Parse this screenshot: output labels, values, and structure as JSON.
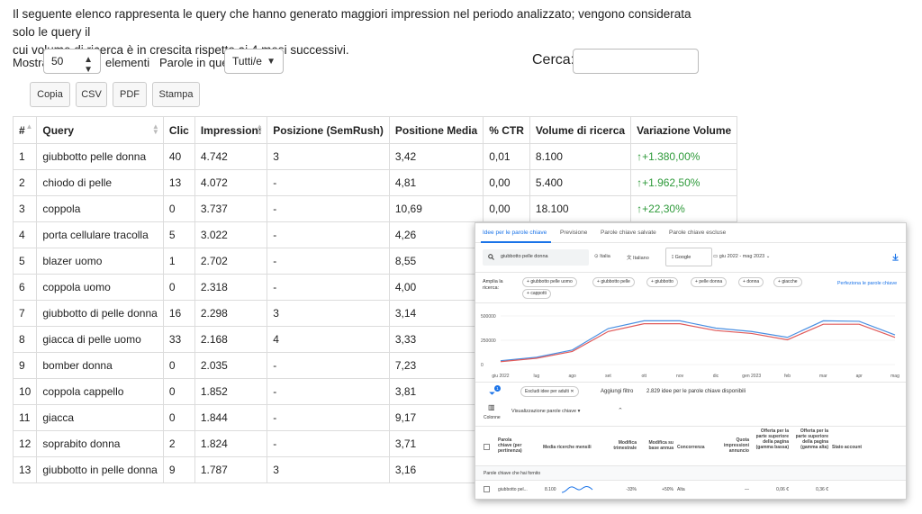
{
  "intro": {
    "line1": "Il seguente elenco rappresenta le query che hanno generato maggiori impression nel periodo analizzato; vengono considerata solo le query il",
    "line2": "cui volume di ricerca è in crescita rispetto ai 4 mesi successivi."
  },
  "controls": {
    "show_label": "Mostra",
    "show_value": "50",
    "elements_label": "elementi",
    "words_label": "Parole in query",
    "words_value": "Tutti/e",
    "search_label": "Cerca:"
  },
  "buttons": [
    "Copia",
    "CSV",
    "PDF",
    "Stampa"
  ],
  "table": {
    "headers": [
      "#",
      "Query",
      "Clic",
      "Impressioni",
      "Posizione (SemRush)",
      "Positione Media",
      "% CTR",
      "Volume di ricerca",
      "Variazione Volume"
    ],
    "rows": [
      {
        "n": "1",
        "query": "giubbotto pelle donna",
        "clic": "40",
        "impr": "4.742",
        "pos_sem": "3",
        "pos_media": "3,42",
        "ctr": "0,01",
        "volume": "8.100",
        "variazione": "+1.380,00%"
      },
      {
        "n": "2",
        "query": "chiodo di pelle",
        "clic": "13",
        "impr": "4.072",
        "pos_sem": "-",
        "pos_media": "4,81",
        "ctr": "0,00",
        "volume": "5.400",
        "variazione": "+1.962,50%"
      },
      {
        "n": "3",
        "query": "coppola",
        "clic": "0",
        "impr": "3.737",
        "pos_sem": "-",
        "pos_media": "10,69",
        "ctr": "0,00",
        "volume": "18.100",
        "variazione": "+22,30%"
      },
      {
        "n": "4",
        "query": "porta cellulare tracolla",
        "clic": "5",
        "impr": "3.022",
        "pos_sem": "-",
        "pos_media": "4,26",
        "ctr": "",
        "volume": "",
        "variazione": ""
      },
      {
        "n": "5",
        "query": "blazer uomo",
        "clic": "1",
        "impr": "2.702",
        "pos_sem": "-",
        "pos_media": "8,55",
        "ctr": "",
        "volume": "",
        "variazione": ""
      },
      {
        "n": "6",
        "query": "coppola uomo",
        "clic": "0",
        "impr": "2.318",
        "pos_sem": "-",
        "pos_media": "4,00",
        "ctr": "",
        "volume": "",
        "variazione": ""
      },
      {
        "n": "7",
        "query": "giubbotto di pelle donna",
        "clic": "16",
        "impr": "2.298",
        "pos_sem": "3",
        "pos_media": "3,14",
        "ctr": "",
        "volume": "",
        "variazione": ""
      },
      {
        "n": "8",
        "query": "giacca di pelle uomo",
        "clic": "33",
        "impr": "2.168",
        "pos_sem": "4",
        "pos_media": "3,33",
        "ctr": "",
        "volume": "",
        "variazione": ""
      },
      {
        "n": "9",
        "query": "bomber donna",
        "clic": "0",
        "impr": "2.035",
        "pos_sem": "-",
        "pos_media": "7,23",
        "ctr": "",
        "volume": "",
        "variazione": ""
      },
      {
        "n": "10",
        "query": "coppola cappello",
        "clic": "0",
        "impr": "1.852",
        "pos_sem": "-",
        "pos_media": "3,81",
        "ctr": "",
        "volume": "",
        "variazione": ""
      },
      {
        "n": "11",
        "query": "giacca",
        "clic": "0",
        "impr": "1.844",
        "pos_sem": "-",
        "pos_media": "9,17",
        "ctr": "",
        "volume": "",
        "variazione": ""
      },
      {
        "n": "12",
        "query": "soprabito donna",
        "clic": "2",
        "impr": "1.824",
        "pos_sem": "-",
        "pos_media": "3,71",
        "ctr": "",
        "volume": "",
        "variazione": ""
      },
      {
        "n": "13",
        "query": "giubbotto in pelle donna",
        "clic": "9",
        "impr": "1.787",
        "pos_sem": "3",
        "pos_media": "3,16",
        "ctr": "",
        "volume": "",
        "variazione": ""
      }
    ]
  },
  "overlay": {
    "tabs": [
      "Idee per le parole chiave",
      "Previsione",
      "Parole chiave salvate",
      "Parole chiave escluse"
    ],
    "search_value": "giubbotto pelle donna",
    "location": "Italia",
    "language": "Italiano",
    "network": "Google",
    "date_range": "giu 2022 - mag 2023",
    "broaden_label": "Amplia la ricerca:",
    "chips": [
      "giubbotto pelle uomo",
      "giubbotto pelle",
      "giubbotto",
      "pelle donna",
      "donna",
      "giacche",
      "cappotti"
    ],
    "refine_link": "Perfeziona le parole chiave",
    "chart": {
      "y_ticks": [
        "500000",
        "250000",
        "0"
      ],
      "x_ticks": [
        "giu 2022",
        "lug",
        "ago",
        "set",
        "ott",
        "nov",
        "dic",
        "gen 2023",
        "feb",
        "mar",
        "apr",
        "mag"
      ]
    },
    "filter_chip": "Escludi idee per adulti",
    "filter_badge": "1",
    "add_filter": "Aggiungi filtro",
    "ideas_count": "2.829 idee per le parole chiave disponibili",
    "columns_label": "Colonne",
    "view_label": "Visualizzazione parole chiave",
    "table_headers": [
      "Parola chiave (per pertinenza)",
      "Media ricerche mensili",
      "Modifica trimestrale",
      "Modifica su base annua",
      "Concorrenza",
      "Quota impressioni annuncio",
      "Offerta per la parte superiore della pagina (gamma bassa)",
      "Offerta per la parte superiore della pagina (gamma alta)",
      "Stato account"
    ],
    "section_label": "Parole chiave che hai fornito",
    "row": {
      "keyword": "giubbotto pel...",
      "avg": "8.100",
      "trim": "-33%",
      "annual": "+50%",
      "competition": "Alta",
      "quota": "—",
      "low": "0,06 €",
      "high": "0,36 €"
    }
  },
  "chart_data": {
    "type": "line",
    "categories": [
      "giu 2022",
      "lug",
      "ago",
      "set",
      "ott",
      "nov",
      "dic",
      "gen 2023",
      "feb",
      "mar",
      "apr",
      "mag"
    ],
    "ylim": [
      0,
      500000
    ],
    "series": [
      {
        "values": [
          40000,
          75000,
          150000,
          370000,
          450000,
          450000,
          375000,
          340000,
          280000,
          450000,
          445000,
          305000
        ],
        "color": "#4a90e2"
      },
      {
        "values": [
          30000,
          65000,
          135000,
          340000,
          420000,
          420000,
          350000,
          320000,
          255000,
          415000,
          415000,
          280000
        ],
        "color": "#e05a5a"
      }
    ]
  }
}
